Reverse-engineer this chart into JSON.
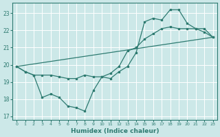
{
  "xlabel": "Humidex (Indice chaleur)",
  "ylabel": "",
  "bg_color": "#cce8e8",
  "line_color": "#2d7a70",
  "xlim": [
    -0.5,
    23.5
  ],
  "ylim": [
    16.8,
    23.6
  ],
  "yticks": [
    17,
    18,
    19,
    20,
    21,
    22,
    23
  ],
  "xticks": [
    0,
    1,
    2,
    3,
    4,
    5,
    6,
    7,
    8,
    9,
    10,
    11,
    12,
    13,
    14,
    15,
    16,
    17,
    18,
    19,
    20,
    21,
    22,
    23
  ],
  "line1_x": [
    0,
    1,
    2,
    3,
    4,
    5,
    6,
    7,
    8,
    9,
    10,
    11,
    12,
    13,
    14,
    15,
    16,
    17,
    18,
    19,
    20,
    21,
    22,
    23
  ],
  "line1_y": [
    19.9,
    19.6,
    19.4,
    19.4,
    19.4,
    19.3,
    19.2,
    19.2,
    19.4,
    19.3,
    19.3,
    19.5,
    19.9,
    20.8,
    21.0,
    21.5,
    21.8,
    22.1,
    22.2,
    22.1,
    22.1,
    22.1,
    21.9,
    21.6
  ],
  "line2_x": [
    0,
    1,
    2,
    3,
    4,
    5,
    6,
    7,
    8,
    9,
    10,
    11,
    12,
    13,
    14,
    15,
    16,
    17,
    18,
    19,
    20,
    21,
    22,
    23
  ],
  "line2_y": [
    19.9,
    19.6,
    19.4,
    18.1,
    18.3,
    18.1,
    17.6,
    17.5,
    17.3,
    18.5,
    19.3,
    19.2,
    19.6,
    19.9,
    20.7,
    22.5,
    22.7,
    22.6,
    23.2,
    23.2,
    22.4,
    22.1,
    22.1,
    21.6
  ],
  "line3_x": [
    0,
    23
  ],
  "line3_y": [
    19.9,
    21.6
  ]
}
